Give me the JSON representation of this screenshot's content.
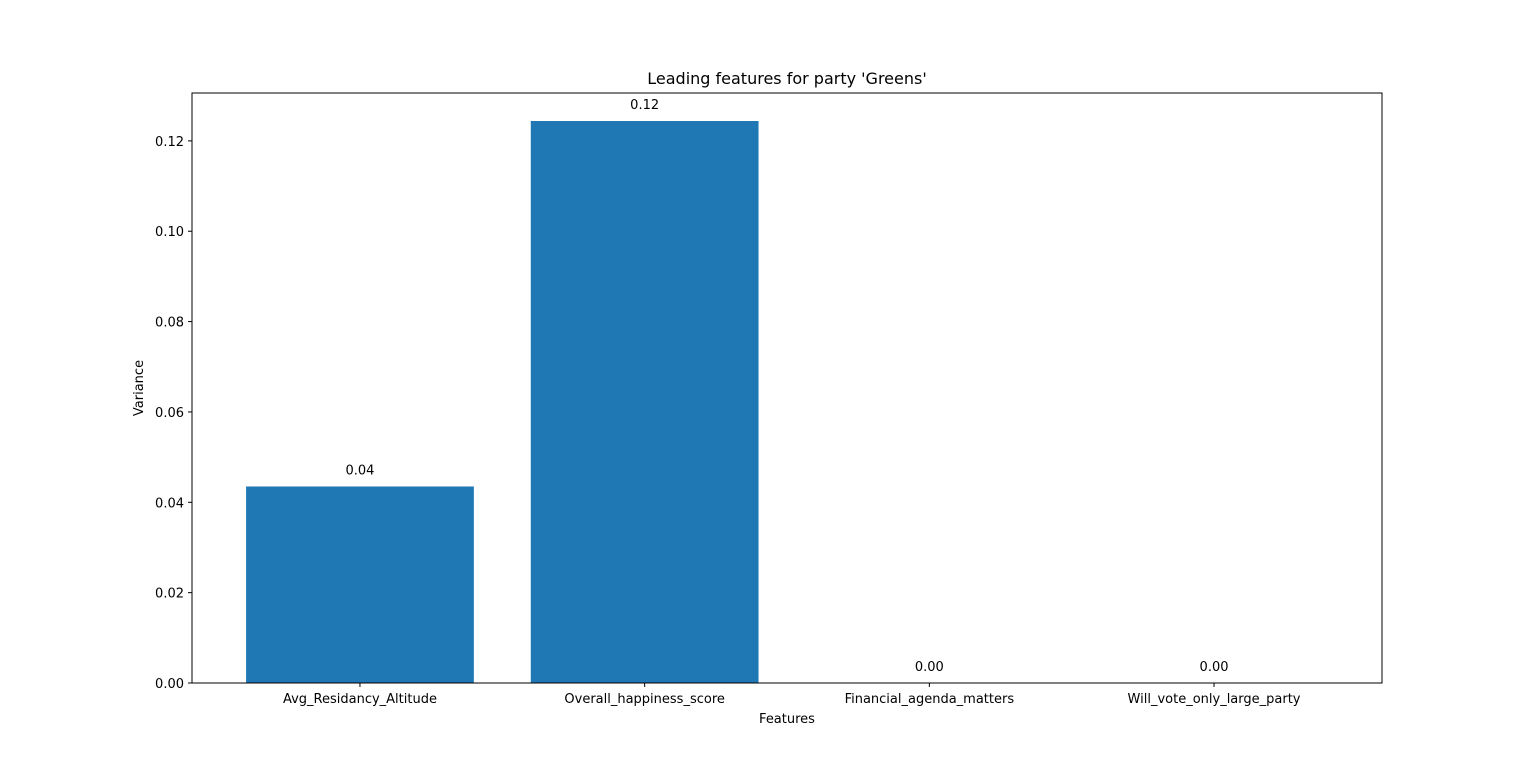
{
  "chart_data": {
    "type": "bar",
    "title": "Leading features for party 'Greens'",
    "xlabel": "Features",
    "ylabel": "Variance",
    "categories": [
      "Avg_Residancy_Altitude",
      "Overall_happiness_score",
      "Financial_agenda_matters",
      "Will_vote_only_large_party"
    ],
    "values": [
      0.0435,
      0.1244,
      0.0,
      0.0
    ],
    "data_labels": [
      "0.04",
      "0.12",
      "0.00",
      "0.00"
    ],
    "ylim": [
      0,
      0.1306
    ],
    "yticks": [
      0.0,
      0.02,
      0.04,
      0.06,
      0.08,
      0.1,
      0.12
    ],
    "ytick_labels": [
      "0.00",
      "0.02",
      "0.04",
      "0.06",
      "0.08",
      "0.10",
      "0.12"
    ],
    "bar_color": "#1f77b4",
    "grid": false
  }
}
